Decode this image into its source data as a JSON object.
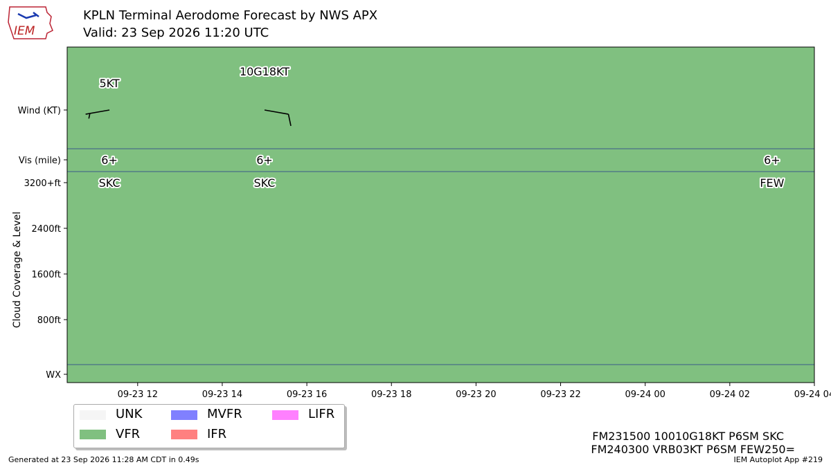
{
  "header": {
    "title_line1": "KPLN Terminal Aerodome Forecast by NWS APX",
    "title_line2": "Valid: 23 Sep 2026 11:20 UTC",
    "logo_text": "IEM"
  },
  "footer": {
    "generated": "Generated at 23 Sep 2026 11:28 AM CDT in 0.49s",
    "app": "IEM Autoplot App #219"
  },
  "taf_text": [
    "FM231500 10010G18KT P6SM SKC",
    "FM240300 VRB03KT P6SM FEW250="
  ],
  "colors": {
    "UNK": "#f5f5f5",
    "VFR": "#80c080",
    "MVFR": "#8080ff",
    "IFR": "#ff8080",
    "LIFR": "#ff80ff",
    "row_divider": "#3a5a8a"
  },
  "legend": [
    {
      "label": "UNK",
      "color": "#f5f5f5"
    },
    {
      "label": "MVFR",
      "color": "#8080ff"
    },
    {
      "label": "LIFR",
      "color": "#ff80ff"
    },
    {
      "label": "VFR",
      "color": "#80c080"
    },
    {
      "label": "IFR",
      "color": "#ff8080"
    }
  ],
  "chart_data": {
    "type": "timeline",
    "title": "KPLN Terminal Aerodome Forecast by NWS APX",
    "subtitle": "Valid: 23 Sep 2026 11:20 UTC",
    "ylabel": "Cloud Coverage & Level",
    "x_range": [
      "09-23 10:20",
      "09-24 04:00"
    ],
    "x_ticks": [
      "09-23 12",
      "09-23 14",
      "09-23 16",
      "09-23 18",
      "09-23 20",
      "09-23 22",
      "09-24 00",
      "09-24 02",
      "09-24 04"
    ],
    "y_rows": [
      "Wind (KT)",
      "Vis (mile)",
      "3200+ft",
      "2400ft",
      "1600ft",
      "800ft",
      "WX"
    ],
    "grid": false,
    "legend_position": "bottom-left",
    "flight_category": "VFR",
    "forecasts": [
      {
        "time": "09-23 11:20",
        "wind_label": "5KT",
        "wind_dir_deg": 260,
        "wind_speed_kt": 5,
        "vis": "6+",
        "cloud": "SKC"
      },
      {
        "time": "09-23 15:00",
        "wind_label": "10G18KT",
        "wind_dir_deg": 100,
        "wind_speed_kt": 10,
        "vis": "6+",
        "cloud": "SKC"
      },
      {
        "time": "09-24 03:00",
        "wind_label": "",
        "wind_dir_deg": null,
        "wind_speed_kt": 3,
        "vis": "6+",
        "cloud": "FEW"
      }
    ]
  }
}
